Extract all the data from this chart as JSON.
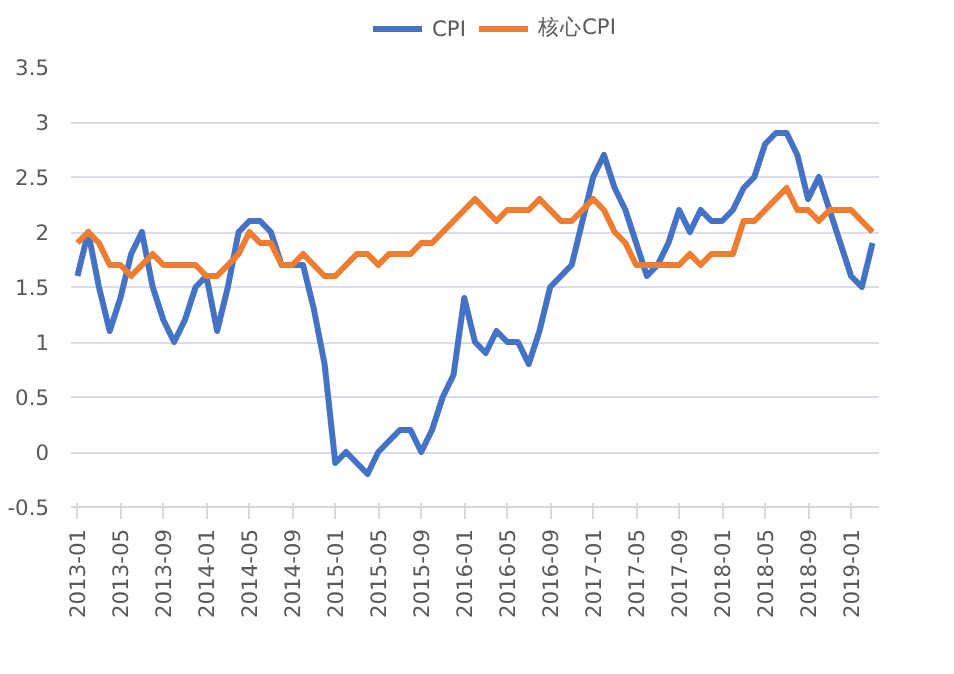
{
  "chart_data": {
    "type": "line",
    "categories": [
      "2013-01",
      null,
      null,
      null,
      "2013-05",
      null,
      null,
      null,
      "2013-09",
      null,
      null,
      null,
      "2014-01",
      null,
      null,
      null,
      "2014-05",
      null,
      null,
      null,
      "2014-09",
      null,
      null,
      null,
      "2015-01",
      null,
      null,
      null,
      "2015-05",
      null,
      null,
      null,
      "2015-09",
      null,
      null,
      null,
      "2016-01",
      null,
      null,
      null,
      "2016-05",
      null,
      null,
      null,
      "2016-09",
      null,
      null,
      null,
      "2017-01",
      null,
      null,
      null,
      "2017-05",
      null,
      null,
      null,
      "2017-09",
      null,
      null,
      null,
      "2018-01",
      null,
      null,
      null,
      "2018-05",
      null,
      null,
      null,
      "2018-09",
      null,
      null,
      null,
      "2019-01",
      null,
      null
    ],
    "series": [
      {
        "name": "CPI",
        "color": "#4472c4",
        "values": [
          1.6,
          2.0,
          1.5,
          1.1,
          1.4,
          1.8,
          2.0,
          1.5,
          1.2,
          1.0,
          1.2,
          1.5,
          1.6,
          1.1,
          1.5,
          2.0,
          2.1,
          2.1,
          2.0,
          1.7,
          1.7,
          1.7,
          1.3,
          0.8,
          -0.1,
          0.0,
          -0.1,
          -0.2,
          0.0,
          0.1,
          0.2,
          0.2,
          0.0,
          0.2,
          0.5,
          0.7,
          1.4,
          1.0,
          0.9,
          1.1,
          1.0,
          1.0,
          0.8,
          1.1,
          1.5,
          1.6,
          1.7,
          2.1,
          2.5,
          2.7,
          2.4,
          2.2,
          1.9,
          1.6,
          1.7,
          1.9,
          2.2,
          2.0,
          2.2,
          2.1,
          2.1,
          2.2,
          2.4,
          2.5,
          2.8,
          2.9,
          2.9,
          2.7,
          2.3,
          2.5,
          2.2,
          1.9,
          1.6,
          1.5,
          1.9
        ]
      },
      {
        "name": "核心CPI",
        "color": "#ed7d31",
        "values": [
          1.9,
          2.0,
          1.9,
          1.7,
          1.7,
          1.6,
          1.7,
          1.8,
          1.7,
          1.7,
          1.7,
          1.7,
          1.6,
          1.6,
          1.7,
          1.8,
          2.0,
          1.9,
          1.9,
          1.7,
          1.7,
          1.8,
          1.7,
          1.6,
          1.6,
          1.7,
          1.8,
          1.8,
          1.7,
          1.8,
          1.8,
          1.8,
          1.9,
          1.9,
          2.0,
          2.1,
          2.2,
          2.3,
          2.2,
          2.1,
          2.2,
          2.2,
          2.2,
          2.3,
          2.2,
          2.1,
          2.1,
          2.2,
          2.3,
          2.2,
          2.0,
          1.9,
          1.7,
          1.7,
          1.7,
          1.7,
          1.7,
          1.8,
          1.7,
          1.8,
          1.8,
          1.8,
          2.1,
          2.1,
          2.2,
          2.3,
          2.4,
          2.2,
          2.2,
          2.1,
          2.2,
          2.2,
          2.2,
          2.1,
          2.0
        ]
      }
    ],
    "ylim": [
      -0.5,
      3.5
    ],
    "yticks": [
      -0.5,
      0,
      0.5,
      1,
      1.5,
      2,
      2.5,
      3,
      3.5
    ],
    "grid": "y",
    "legend": "top",
    "marker": "none",
    "line_style": "solid"
  }
}
